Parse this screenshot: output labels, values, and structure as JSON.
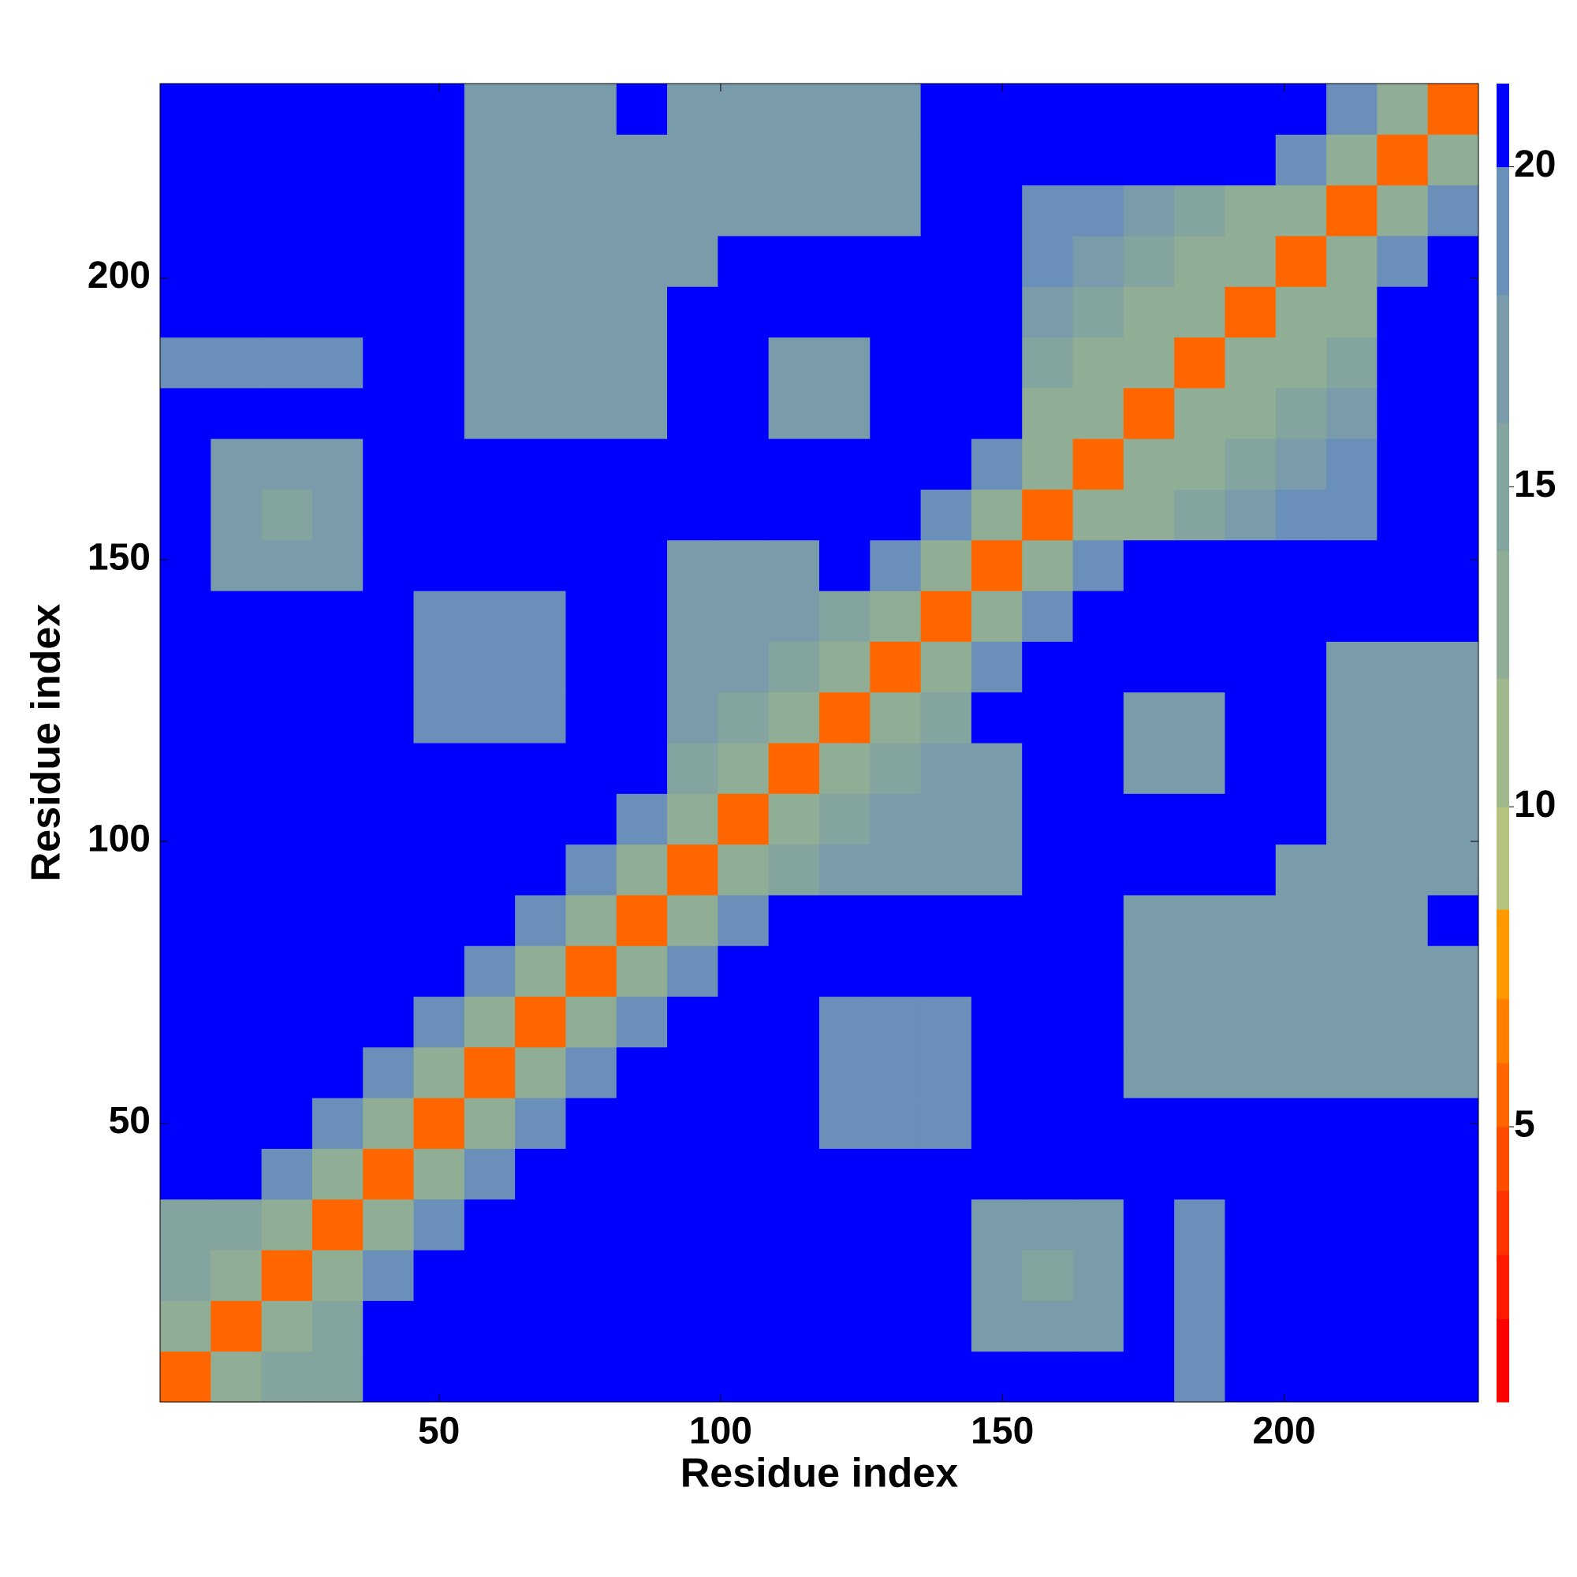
{
  "chart_data": {
    "type": "heatmap",
    "xlabel": "Residue index",
    "ylabel": "Residue index",
    "x": [
      5,
      14,
      23,
      32,
      41,
      50,
      59,
      68,
      77,
      86,
      95,
      104,
      113,
      122,
      131,
      140,
      149,
      158,
      167,
      176,
      185,
      194,
      203,
      212,
      221,
      230
    ],
    "y": [
      5,
      14,
      23,
      32,
      41,
      50,
      59,
      68,
      77,
      86,
      95,
      104,
      113,
      122,
      131,
      140,
      149,
      158,
      167,
      176,
      185,
      194,
      203,
      212,
      221,
      230
    ],
    "xlim": [
      0.5,
      234.5
    ],
    "ylim": [
      0.5,
      234.5
    ],
    "xticks": [
      50,
      100,
      150,
      200
    ],
    "yticks": [
      50,
      100,
      150,
      200
    ],
    "z": [
      [
        6,
        14,
        15,
        15,
        21,
        21,
        21,
        21,
        21,
        21,
        21,
        21,
        21,
        21,
        21,
        21,
        21,
        21,
        21,
        21,
        20,
        21,
        21,
        21,
        21,
        21
      ],
      [
        14,
        6,
        14,
        15,
        21,
        21,
        21,
        21,
        21,
        21,
        21,
        21,
        21,
        21,
        21,
        21,
        17,
        17,
        17,
        21,
        20,
        21,
        21,
        21,
        21,
        21
      ],
      [
        15,
        14,
        6,
        14,
        19,
        21,
        21,
        21,
        21,
        21,
        21,
        21,
        21,
        21,
        21,
        21,
        17,
        16,
        17,
        21,
        20,
        21,
        21,
        21,
        21,
        21
      ],
      [
        15,
        15,
        14,
        6,
        14,
        19,
        21,
        21,
        21,
        21,
        21,
        21,
        21,
        21,
        21,
        21,
        17,
        17,
        17,
        21,
        20,
        21,
        21,
        21,
        21,
        21
      ],
      [
        21,
        21,
        19,
        14,
        6,
        14,
        19,
        21,
        21,
        21,
        21,
        21,
        21,
        21,
        21,
        21,
        21,
        21,
        21,
        21,
        21,
        21,
        21,
        21,
        21,
        21
      ],
      [
        21,
        21,
        21,
        19,
        14,
        6,
        14,
        19,
        21,
        21,
        21,
        21,
        21,
        20,
        20,
        20,
        21,
        21,
        21,
        21,
        21,
        21,
        21,
        21,
        21,
        21
      ],
      [
        21,
        21,
        21,
        21,
        19,
        14,
        6,
        14,
        19,
        21,
        21,
        21,
        21,
        20,
        20,
        20,
        21,
        21,
        21,
        17,
        17,
        17,
        17,
        17,
        17,
        18
      ],
      [
        21,
        21,
        21,
        21,
        21,
        19,
        14,
        6,
        14,
        19,
        21,
        21,
        21,
        20,
        20,
        20,
        21,
        21,
        21,
        17,
        17,
        17,
        17,
        17,
        17,
        18
      ],
      [
        21,
        21,
        21,
        21,
        21,
        21,
        19,
        14,
        6,
        14,
        19,
        21,
        21,
        21,
        21,
        21,
        21,
        21,
        21,
        17,
        17,
        17,
        17,
        17,
        17,
        18
      ],
      [
        21,
        21,
        21,
        21,
        21,
        21,
        21,
        19,
        14,
        6,
        14,
        19,
        21,
        21,
        21,
        21,
        21,
        21,
        21,
        17,
        17,
        17,
        17,
        17,
        17,
        21
      ],
      [
        21,
        21,
        21,
        21,
        21,
        21,
        21,
        21,
        19,
        14,
        6,
        14,
        16,
        18,
        18,
        18,
        18,
        21,
        21,
        21,
        21,
        21,
        17,
        17,
        17,
        17
      ],
      [
        21,
        21,
        21,
        21,
        21,
        21,
        21,
        21,
        21,
        19,
        14,
        6,
        14,
        16,
        18,
        18,
        18,
        21,
        21,
        21,
        21,
        21,
        21,
        17,
        17,
        17
      ],
      [
        21,
        21,
        21,
        21,
        21,
        21,
        21,
        21,
        21,
        21,
        16,
        14,
        6,
        14,
        16,
        18,
        18,
        21,
        21,
        18,
        18,
        21,
        21,
        17,
        17,
        17
      ],
      [
        21,
        21,
        21,
        21,
        21,
        20,
        20,
        20,
        21,
        21,
        18,
        16,
        14,
        6,
        14,
        16,
        21,
        21,
        21,
        18,
        18,
        21,
        21,
        17,
        17,
        17
      ],
      [
        21,
        21,
        21,
        21,
        21,
        20,
        20,
        20,
        21,
        21,
        18,
        18,
        16,
        14,
        6,
        14,
        19,
        21,
        21,
        21,
        21,
        21,
        21,
        17,
        17,
        17
      ],
      [
        21,
        21,
        21,
        21,
        21,
        20,
        20,
        20,
        21,
        21,
        18,
        18,
        18,
        16,
        14,
        6,
        14,
        19,
        21,
        21,
        21,
        21,
        21,
        21,
        21,
        21
      ],
      [
        21,
        17,
        17,
        17,
        21,
        21,
        21,
        21,
        21,
        21,
        18,
        18,
        18,
        21,
        19,
        14,
        6,
        14,
        19,
        21,
        21,
        21,
        21,
        21,
        21,
        21
      ],
      [
        21,
        17,
        16,
        17,
        21,
        21,
        21,
        21,
        21,
        21,
        21,
        21,
        21,
        21,
        21,
        19,
        14,
        6,
        14,
        14,
        15,
        17,
        19,
        20,
        21,
        21
      ],
      [
        21,
        17,
        17,
        17,
        21,
        21,
        21,
        21,
        21,
        21,
        21,
        21,
        21,
        21,
        21,
        21,
        19,
        14,
        6,
        14,
        14,
        15,
        17,
        19,
        21,
        21
      ],
      [
        21,
        21,
        21,
        21,
        21,
        21,
        17,
        17,
        17,
        17,
        21,
        21,
        18,
        18,
        21,
        21,
        21,
        14,
        14,
        6,
        14,
        14,
        15,
        17,
        21,
        21
      ],
      [
        20,
        20,
        20,
        20,
        21,
        21,
        17,
        17,
        17,
        17,
        21,
        21,
        18,
        18,
        21,
        21,
        21,
        15,
        14,
        14,
        6,
        14,
        14,
        15,
        21,
        21
      ],
      [
        21,
        21,
        21,
        21,
        21,
        21,
        17,
        17,
        17,
        17,
        21,
        21,
        21,
        21,
        21,
        21,
        21,
        17,
        15,
        14,
        14,
        6,
        14,
        14,
        21,
        21
      ],
      [
        21,
        21,
        21,
        21,
        21,
        21,
        17,
        17,
        17,
        17,
        17,
        21,
        21,
        21,
        21,
        21,
        21,
        19,
        17,
        15,
        14,
        14,
        6,
        14,
        19,
        21
      ],
      [
        21,
        21,
        21,
        21,
        21,
        21,
        17,
        17,
        17,
        17,
        17,
        17,
        17,
        17,
        17,
        21,
        21,
        20,
        19,
        17,
        15,
        14,
        14,
        6,
        14,
        19
      ],
      [
        21,
        21,
        21,
        21,
        21,
        21,
        17,
        17,
        17,
        17,
        17,
        17,
        17,
        17,
        17,
        21,
        21,
        21,
        21,
        21,
        21,
        21,
        19,
        14,
        6,
        14
      ],
      [
        21,
        21,
        21,
        21,
        21,
        21,
        18,
        18,
        18,
        21,
        17,
        17,
        17,
        17,
        17,
        21,
        21,
        21,
        21,
        21,
        21,
        21,
        21,
        19,
        14,
        6
      ]
    ],
    "colorbar": {
      "zlim": [
        0.7,
        21.3
      ],
      "zticks": [
        5,
        10,
        15,
        20
      ],
      "levels": [
        0.7,
        2,
        3,
        4,
        5,
        6,
        7,
        8.4,
        10,
        12,
        14,
        16,
        18,
        20,
        21.3
      ],
      "colors": [
        "#ff0000",
        "#ff1a00",
        "#ff3300",
        "#ff4d00",
        "#ff6600",
        "#ff8000",
        "#ff9900",
        "#b4c47e",
        "#9fb88c",
        "#8fae95",
        "#84a49f",
        "#7a9caa",
        "#6a8fb8",
        "#0000ff"
      ]
    }
  }
}
